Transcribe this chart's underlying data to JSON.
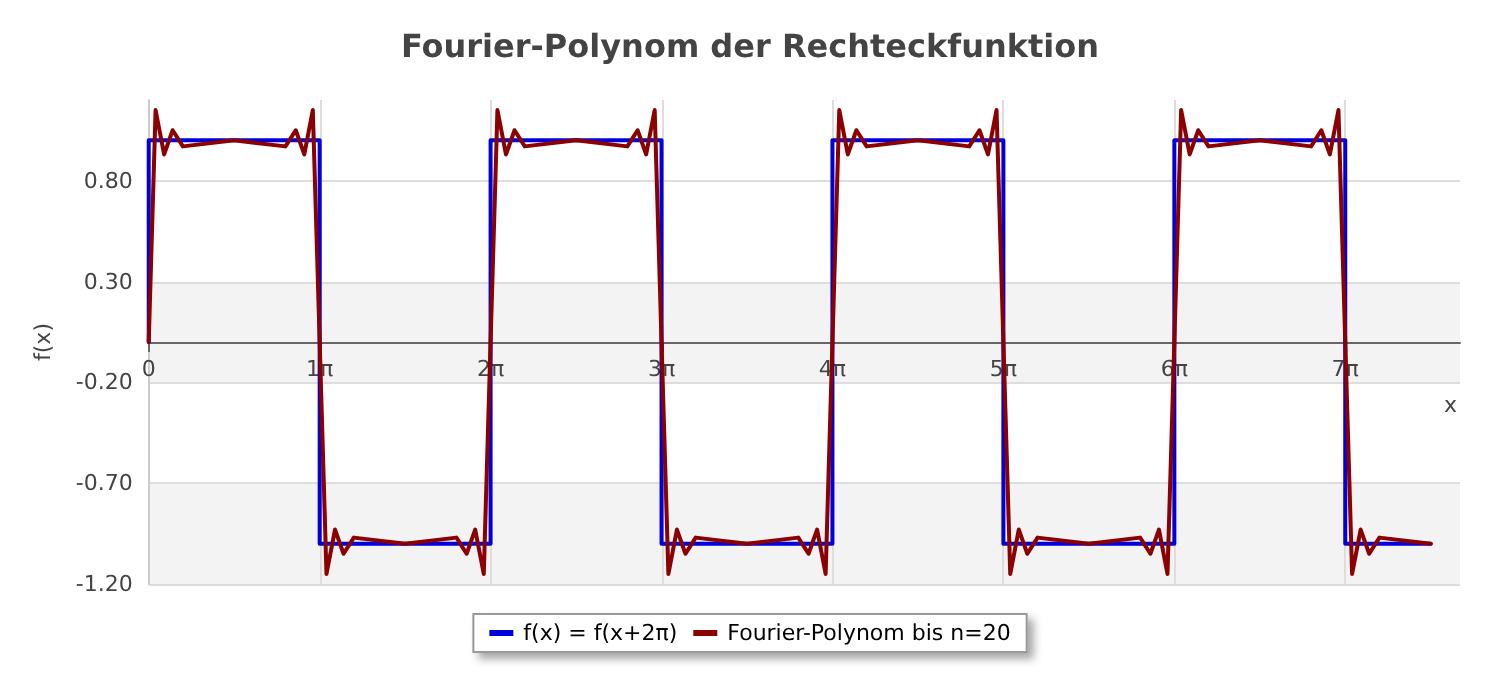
{
  "chart_data": {
    "type": "line",
    "title": "Fourier-Polynom der Rechteckfunktion",
    "xlabel": "x",
    "ylabel": "f(x)",
    "xlim": [
      0,
      24.1
    ],
    "xticks": [
      0,
      {
        "value": 3.142,
        "label": "1π"
      },
      {
        "value": 6.283,
        "label": "2π"
      },
      {
        "value": 9.425,
        "label": "3π"
      },
      {
        "value": 12.566,
        "label": "4π"
      },
      {
        "value": 15.708,
        "label": "5π"
      },
      {
        "value": 18.85,
        "label": "6π"
      },
      {
        "value": 21.991,
        "label": "7π"
      }
    ],
    "ylim": [
      -1.2,
      1.2
    ],
    "yticks": [
      {
        "value": -1.2,
        "label": "-1.20"
      },
      {
        "value": -0.7,
        "label": "-0.70"
      },
      {
        "value": -0.2,
        "label": "-0.20"
      },
      {
        "value": 0.3,
        "label": "0.30"
      },
      {
        "value": 0.8,
        "label": "0.80"
      }
    ],
    "grid": true,
    "legend": "bottom",
    "marker": "none",
    "line_style": "solid",
    "series": [
      {
        "name": "f(x) = f(x+2π)",
        "color": "#0000dd",
        "x": [
          0,
          0,
          3.142,
          3.142,
          6.283,
          6.283,
          9.425,
          9.425,
          12.566,
          12.566,
          15.708,
          15.708,
          18.85,
          18.85,
          21.991,
          21.991,
          23.562
        ],
        "values": [
          0,
          1,
          1,
          -1,
          -1,
          1,
          1,
          -1,
          -1,
          1,
          1,
          -1,
          -1,
          1,
          1,
          -1,
          -1
        ]
      },
      {
        "name": "Fourier-Polynom bis n=20",
        "color": "#8b0000",
        "x": [
          0,
          0.126,
          0.283,
          0.44,
          0.628,
          1.571,
          2.513,
          2.702,
          2.859,
          3.016,
          3.142,
          3.267,
          3.424,
          3.581,
          3.77,
          4.712,
          5.655,
          5.843,
          6,
          6.158,
          6.283,
          6.409,
          6.566,
          6.723,
          6.912,
          7.854,
          8.797,
          8.985,
          9.142,
          9.299,
          9.425,
          9.551,
          9.708,
          9.865,
          10.053,
          10.996,
          11.938,
          12.127,
          12.284,
          12.441,
          12.566,
          12.692,
          12.849,
          13.006,
          13.195,
          14.137,
          15.08,
          15.268,
          15.425,
          15.582,
          15.708,
          15.834,
          15.991,
          16.148,
          16.336,
          17.279,
          18.221,
          18.41,
          18.567,
          18.724,
          18.85,
          18.975,
          19.132,
          19.289,
          19.478,
          20.42,
          21.363,
          21.551,
          21.708,
          21.866,
          21.991,
          22.117,
          22.274,
          22.431,
          22.619,
          23.562
        ],
        "values": [
          0,
          1.15,
          0.93,
          1.05,
          0.97,
          1,
          0.97,
          1.05,
          0.93,
          1.15,
          0,
          -1.15,
          -0.93,
          -1.05,
          -0.97,
          -1,
          -0.97,
          -1.05,
          -0.93,
          -1.15,
          0,
          1.15,
          0.93,
          1.05,
          0.97,
          1,
          0.97,
          1.05,
          0.93,
          1.15,
          0,
          -1.15,
          -0.93,
          -1.05,
          -0.97,
          -1,
          -0.97,
          -1.05,
          -0.93,
          -1.15,
          0,
          1.15,
          0.93,
          1.05,
          0.97,
          1,
          0.97,
          1.05,
          0.93,
          1.15,
          0,
          -1.15,
          -0.93,
          -1.05,
          -0.97,
          -1,
          -0.97,
          -1.05,
          -0.93,
          -1.15,
          0,
          1.15,
          0.93,
          1.05,
          0.97,
          1,
          0.97,
          1.05,
          0.93,
          1.15,
          0,
          -1.15,
          -0.93,
          -1.05,
          -0.97,
          -1
        ]
      }
    ]
  }
}
